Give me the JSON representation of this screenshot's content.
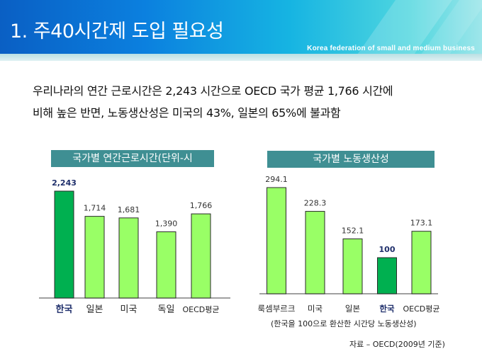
{
  "header": {
    "title": "1. 주40시간제 도입 필요성",
    "org": "Korea federation of small and medium business"
  },
  "summary": {
    "line1": "우리나라의 연간 근로시간은 2,243 시간으로 OECD 국가 평균 1,766 시간에",
    "line2": "비해 높은 반면, 노동생산성은 미국의 43%, 일본의 65%에 불과함"
  },
  "colors": {
    "highlight_bar": "#00b050",
    "normal_bar": "#99ff66",
    "title_bg": "#3f8f93",
    "highlight_text": "#1f2f6b"
  },
  "chart_data": [
    {
      "type": "bar",
      "title": "국가별 연간근로시간(단위-시",
      "categories": [
        "한국",
        "일본",
        "미국",
        "독일",
        "OECD평균"
      ],
      "values": [
        2243,
        1714,
        1681,
        1390,
        1766
      ],
      "value_labels": [
        "2,243",
        "1,714",
        "1,681",
        "1,390",
        "1,766"
      ],
      "highlight": [
        true,
        false,
        false,
        false,
        false
      ],
      "xlabel": "",
      "ylabel": "",
      "grid": false
    },
    {
      "type": "bar",
      "title": "국가별 노동생산성",
      "categories": [
        "룩셈부르크",
        "미국",
        "일본",
        "한국",
        "OECD평균"
      ],
      "values": [
        294.1,
        228.3,
        152.1,
        100,
        173.1
      ],
      "value_labels": [
        "294.1",
        "228.3",
        "152.1",
        "100",
        "173.1"
      ],
      "highlight": [
        false,
        false,
        false,
        true,
        false
      ],
      "note": "(한국을 100으로 환산한 시간당 노동생산성)",
      "xlabel": "",
      "ylabel": "",
      "grid": false
    }
  ],
  "source": "자료 – OECD(2009년 기준)"
}
